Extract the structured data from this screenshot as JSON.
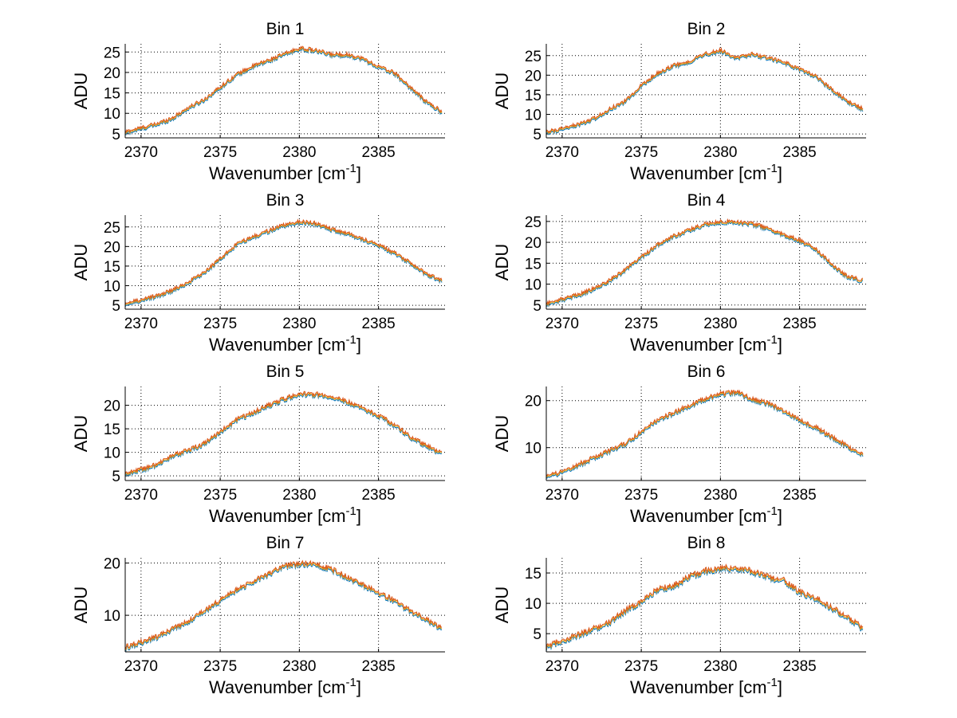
{
  "chart_data": [
    {
      "type": "line",
      "title": "Bin 1",
      "xlabel": "Wavenumber [cm-1]",
      "ylabel": "ADU",
      "xlim": [
        2369,
        2389.2
      ],
      "ylim": [
        4,
        27
      ],
      "xticks": [
        2370,
        2375,
        2380,
        2385
      ],
      "yticks": [
        5,
        10,
        15,
        20,
        25
      ],
      "grid": true,
      "x": [
        2369,
        2370,
        2371,
        2372,
        2373,
        2374,
        2375,
        2376,
        2377,
        2378,
        2379,
        2380,
        2381,
        2382,
        2383,
        2384,
        2385,
        2386,
        2387,
        2388,
        2389
      ],
      "values": [
        5,
        6,
        7,
        8.5,
        11,
        13,
        16,
        19,
        21,
        22.5,
        24,
        25.5,
        25,
        24,
        24,
        23,
        21,
        19.5,
        16,
        12.5,
        10
      ]
    },
    {
      "type": "line",
      "title": "Bin 2",
      "xlabel": "Wavenumber [cm-1]",
      "ylabel": "ADU",
      "xlim": [
        2369,
        2389.2
      ],
      "ylim": [
        4,
        28
      ],
      "xticks": [
        2370,
        2375,
        2380,
        2385
      ],
      "yticks": [
        5,
        10,
        15,
        20,
        25
      ],
      "grid": true,
      "x": [
        2369,
        2370,
        2371,
        2372,
        2373,
        2374,
        2375,
        2376,
        2377,
        2378,
        2379,
        2380,
        2381,
        2382,
        2383,
        2384,
        2385,
        2386,
        2387,
        2388,
        2389
      ],
      "values": [
        5,
        6,
        7,
        8.5,
        11,
        13,
        17,
        20,
        22,
        23,
        25,
        26,
        24,
        25,
        24,
        23,
        21,
        19.5,
        16,
        13,
        11
      ]
    },
    {
      "type": "line",
      "title": "Bin 3",
      "xlabel": "Wavenumber [cm-1]",
      "ylabel": "ADU",
      "xlim": [
        2369,
        2389.2
      ],
      "ylim": [
        4,
        28
      ],
      "xticks": [
        2370,
        2375,
        2380,
        2385
      ],
      "yticks": [
        5,
        10,
        15,
        20,
        25
      ],
      "grid": true,
      "x": [
        2369,
        2370,
        2371,
        2372,
        2373,
        2374,
        2375,
        2376,
        2377,
        2378,
        2379,
        2380,
        2381,
        2382,
        2383,
        2384,
        2385,
        2386,
        2387,
        2388,
        2389
      ],
      "values": [
        5,
        6,
        7,
        8.5,
        10.5,
        13,
        16.5,
        20,
        22,
        23.5,
        25,
        26,
        25.5,
        24,
        23,
        21.5,
        20,
        18,
        15.5,
        12.5,
        11
      ]
    },
    {
      "type": "line",
      "title": "Bin 4",
      "xlabel": "Wavenumber [cm-1]",
      "ylabel": "ADU",
      "xlim": [
        2369,
        2389.2
      ],
      "ylim": [
        4,
        26.5
      ],
      "xticks": [
        2370,
        2375,
        2380,
        2385
      ],
      "yticks": [
        5,
        10,
        15,
        20,
        25
      ],
      "grid": true,
      "x": [
        2369,
        2370,
        2371,
        2372,
        2373,
        2374,
        2375,
        2376,
        2377,
        2378,
        2379,
        2380,
        2381,
        2382,
        2383,
        2384,
        2385,
        2386,
        2387,
        2388,
        2389
      ],
      "values": [
        5,
        6,
        7,
        8.5,
        10.5,
        13,
        16,
        19,
        21,
        22.5,
        24,
        24.5,
        24.5,
        24,
        23,
        21.5,
        20,
        18,
        14.5,
        11.5,
        10.5
      ]
    },
    {
      "type": "line",
      "title": "Bin 5",
      "xlabel": "Wavenumber [cm-1]",
      "ylabel": "ADU",
      "xlim": [
        2369,
        2389.2
      ],
      "ylim": [
        4,
        24
      ],
      "xticks": [
        2370,
        2375,
        2380,
        2385
      ],
      "yticks": [
        5,
        10,
        15,
        20
      ],
      "grid": true,
      "x": [
        2369,
        2370,
        2371,
        2372,
        2373,
        2374,
        2375,
        2376,
        2377,
        2378,
        2379,
        2380,
        2381,
        2382,
        2383,
        2384,
        2385,
        2386,
        2387,
        2388,
        2389
      ],
      "values": [
        5,
        6,
        7,
        9,
        10,
        11.5,
        14,
        16.5,
        18,
        19.5,
        21,
        22,
        22,
        21.5,
        20.5,
        19,
        17.5,
        15.5,
        13,
        11,
        9.5
      ]
    },
    {
      "type": "line",
      "title": "Bin 6",
      "xlabel": "Wavenumber [cm-1]",
      "ylabel": "ADU",
      "xlim": [
        2369,
        2389.2
      ],
      "ylim": [
        3,
        23
      ],
      "xticks": [
        2370,
        2375,
        2380,
        2385
      ],
      "yticks": [
        10,
        20
      ],
      "grid": true,
      "x": [
        2369,
        2370,
        2371,
        2372,
        2373,
        2374,
        2375,
        2376,
        2377,
        2378,
        2379,
        2380,
        2381,
        2382,
        2383,
        2384,
        2385,
        2386,
        2387,
        2388,
        2389
      ],
      "values": [
        3.5,
        4.5,
        6,
        7.5,
        9,
        10.5,
        13,
        15.5,
        17,
        18.5,
        20,
        21,
        21.5,
        20,
        19,
        17.5,
        15.5,
        14,
        12,
        10,
        8
      ]
    },
    {
      "type": "line",
      "title": "Bin 7",
      "xlabel": "Wavenumber [cm-1]",
      "ylabel": "ADU",
      "xlim": [
        2369,
        2389.2
      ],
      "ylim": [
        3,
        21
      ],
      "xticks": [
        2370,
        2375,
        2380,
        2385
      ],
      "yticks": [
        10,
        20
      ],
      "grid": true,
      "x": [
        2369,
        2370,
        2371,
        2372,
        2373,
        2374,
        2375,
        2376,
        2377,
        2378,
        2379,
        2380,
        2381,
        2382,
        2383,
        2384,
        2385,
        2386,
        2387,
        2388,
        2389
      ],
      "values": [
        3.5,
        4.5,
        5.5,
        7,
        8.5,
        10.5,
        12.5,
        14.5,
        16,
        17.5,
        19,
        19.5,
        19.5,
        18.5,
        17,
        15.5,
        14,
        12.5,
        10.5,
        9,
        7
      ]
    },
    {
      "type": "line",
      "title": "Bin 8",
      "xlabel": "Wavenumber [cm-1]",
      "ylabel": "ADU",
      "xlim": [
        2369,
        2389.2
      ],
      "ylim": [
        2,
        17.5
      ],
      "xticks": [
        2370,
        2375,
        2380,
        2385
      ],
      "yticks": [
        5,
        10,
        15
      ],
      "grid": true,
      "x": [
        2369,
        2370,
        2371,
        2372,
        2373,
        2374,
        2375,
        2376,
        2377,
        2378,
        2379,
        2380,
        2381,
        2382,
        2383,
        2384,
        2385,
        2386,
        2387,
        2388,
        2389
      ],
      "values": [
        2.5,
        3.5,
        4.5,
        5.5,
        6.5,
        8.5,
        10,
        12,
        12.5,
        14,
        15,
        15.5,
        15.5,
        15,
        14,
        13.5,
        11.5,
        10.5,
        9,
        7.5,
        5.5
      ]
    }
  ],
  "series": [
    {
      "name": "series-blue",
      "color": "#0072BD",
      "offset": 0
    },
    {
      "name": "series-yellow",
      "color": "#EDB120",
      "offset": 0.25
    },
    {
      "name": "series-orange",
      "color": "#D95319",
      "offset": 0.5
    }
  ],
  "labels": {
    "xlabel_main": "Wavenumber [cm",
    "xlabel_sup": "-1",
    "xlabel_end": "]"
  }
}
